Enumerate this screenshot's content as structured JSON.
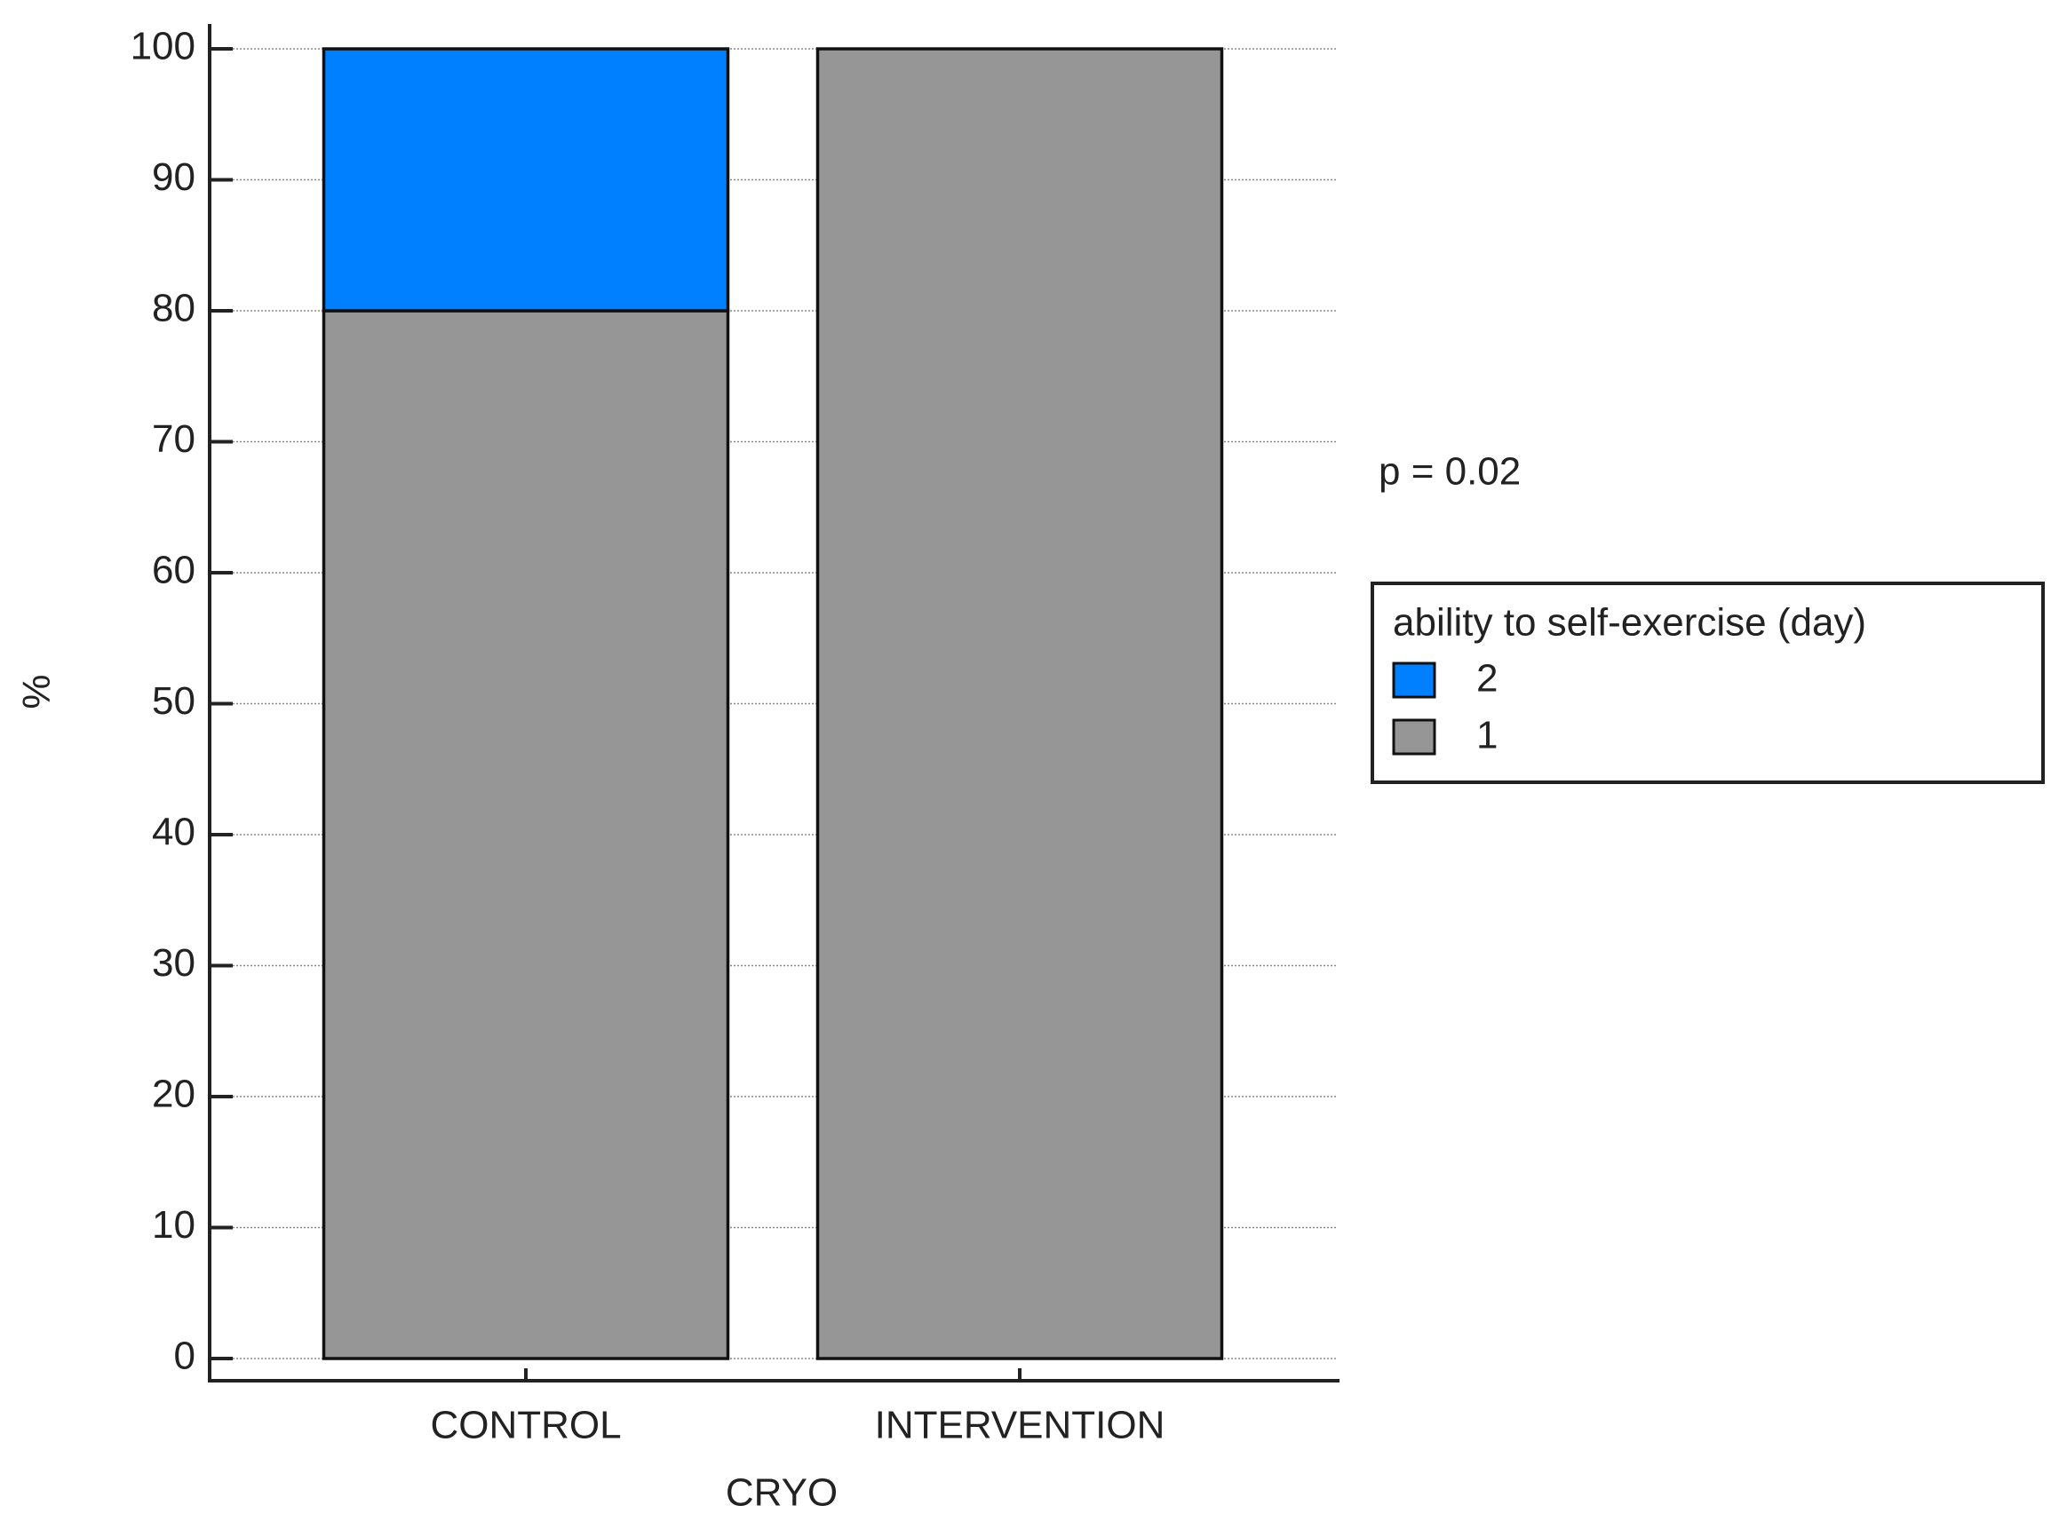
{
  "chart_data": {
    "type": "stacked_bar",
    "x_label": "CRYO",
    "y_label": "%",
    "annotation": "p = 0.02",
    "legend_title": "ability to self-exercise (day)",
    "categories": [
      "CONTROL",
      "INTERVENTION"
    ],
    "series": [
      {
        "name": "1",
        "color": "#969696",
        "values": [
          80,
          100
        ]
      },
      {
        "name": "2",
        "color": "#0080ff",
        "values": [
          20,
          0
        ]
      }
    ],
    "ylim": [
      0,
      100
    ],
    "yticks": [
      0,
      10,
      20,
      30,
      40,
      50,
      60,
      70,
      80,
      90,
      100
    ],
    "grid": true,
    "legend": "right"
  }
}
